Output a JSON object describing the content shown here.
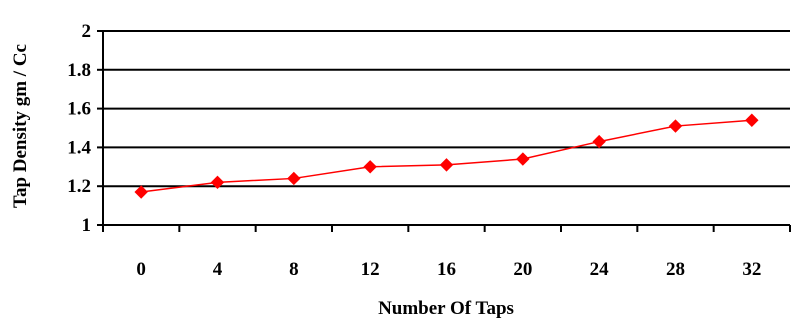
{
  "chart_data": {
    "type": "line",
    "title": "",
    "xlabel": "Number Of Taps",
    "ylabel": "Tap Density gm / Cc",
    "categories": [
      "0",
      "4",
      "8",
      "12",
      "16",
      "20",
      "24",
      "28",
      "32"
    ],
    "series": [
      {
        "values": [
          1.17,
          1.22,
          1.24,
          1.3,
          1.31,
          1.34,
          1.43,
          1.51,
          1.54
        ],
        "color": "#ff0000",
        "marker": "diamond"
      }
    ],
    "ylim": [
      1,
      2
    ],
    "yticks": [
      "1",
      "1.2",
      "1.4",
      "1.6",
      "1.8",
      "2"
    ],
    "grid": "horizontal",
    "legend": "none"
  }
}
